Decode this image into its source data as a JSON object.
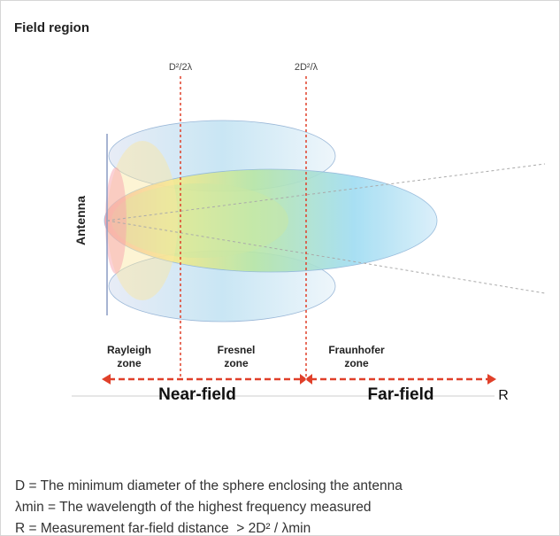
{
  "header": {
    "title": "Field region"
  },
  "diagram": {
    "boundary_1": "D²/2λ",
    "boundary_2": "2D²/λ",
    "antenna": "Antenna",
    "zones": [
      {
        "line1": "Rayleigh",
        "line2": "zone"
      },
      {
        "line1": "Fresnel",
        "line2": "zone"
      },
      {
        "line1": "Fraunhofer",
        "line2": "zone"
      }
    ],
    "near_field": "Near-field",
    "far_field": "Far-field",
    "axis": "R"
  },
  "definitions": [
    "D = The minimum diameter of the sphere enclosing the antenna",
    "λmin = The wavelength of the highest frequency measured",
    "R = Measurement far-field distance  > 2D² / λmin"
  ]
}
